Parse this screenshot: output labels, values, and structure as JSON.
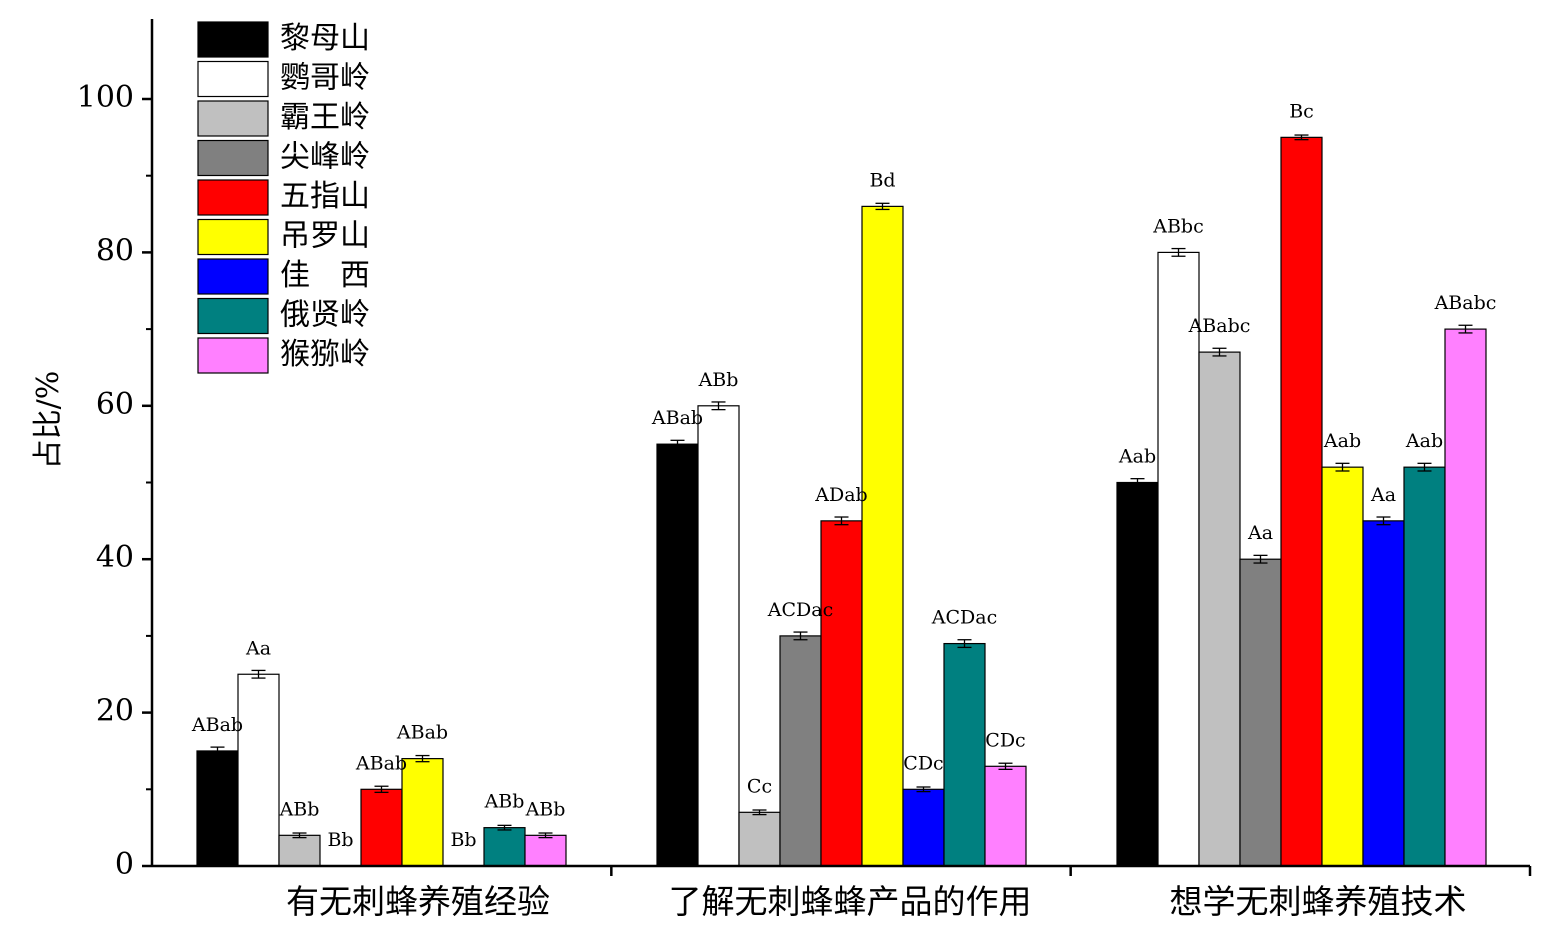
{
  "chart_data": {
    "type": "bar",
    "ylabel": "占比/%",
    "xlabel": "",
    "ylim": [
      0,
      110
    ],
    "yticks": [
      0,
      20,
      40,
      60,
      80,
      100
    ],
    "grid": false,
    "legend_position": "top-left",
    "categories": [
      "有无刺蜂养殖经验",
      "了解无刺蜂蜂产品的作用",
      "想学无刺蜂养殖技术"
    ],
    "series": [
      {
        "name": "黎母山",
        "color": "#000000",
        "values": [
          15,
          55,
          50
        ],
        "errors": [
          0.5,
          0.5,
          0.5
        ],
        "labels": [
          "ABab",
          "ABab",
          "Aab"
        ]
      },
      {
        "name": "鹦哥岭",
        "color": "#ffffff",
        "values": [
          25,
          60,
          80
        ],
        "errors": [
          0.5,
          0.5,
          0.5
        ],
        "labels": [
          "Aa",
          "ABb",
          "ABbc"
        ]
      },
      {
        "name": "霸王岭",
        "color": "#c0c0c0",
        "values": [
          4,
          7,
          67
        ],
        "errors": [
          0.3,
          0.3,
          0.5
        ],
        "labels": [
          "ABb",
          "Cc",
          "ABabc"
        ]
      },
      {
        "name": "尖峰岭",
        "color": "#808080",
        "values": [
          0,
          30,
          40
        ],
        "errors": [
          0,
          0.5,
          0.5
        ],
        "labels": [
          "Bb",
          "ACDac",
          "Aa"
        ]
      },
      {
        "name": "五指山",
        "color": "#ff0000",
        "values": [
          10,
          45,
          95
        ],
        "errors": [
          0.4,
          0.5,
          0.3
        ],
        "labels": [
          "ABab",
          "ADab",
          "Bc"
        ]
      },
      {
        "name": "吊罗山",
        "color": "#ffff00",
        "values": [
          14,
          86,
          52
        ],
        "errors": [
          0.4,
          0.4,
          0.5
        ],
        "labels": [
          "ABab",
          "Bd",
          "Aab"
        ]
      },
      {
        "name": "佳　西",
        "color": "#0000ff",
        "values": [
          0,
          10,
          45
        ],
        "errors": [
          0,
          0.3,
          0.5
        ],
        "labels": [
          "Bb",
          "CDc",
          "Aa"
        ]
      },
      {
        "name": "俄贤岭",
        "color": "#008080",
        "values": [
          5,
          29,
          52
        ],
        "errors": [
          0.3,
          0.5,
          0.5
        ],
        "labels": [
          "ABb",
          "ACDac",
          "Aab"
        ]
      },
      {
        "name": "猴猕岭",
        "color": "#ff80ff",
        "values": [
          4,
          13,
          70
        ],
        "errors": [
          0.3,
          0.4,
          0.5
        ],
        "labels": [
          "ABb",
          "CDc",
          "ABabc"
        ]
      }
    ]
  }
}
